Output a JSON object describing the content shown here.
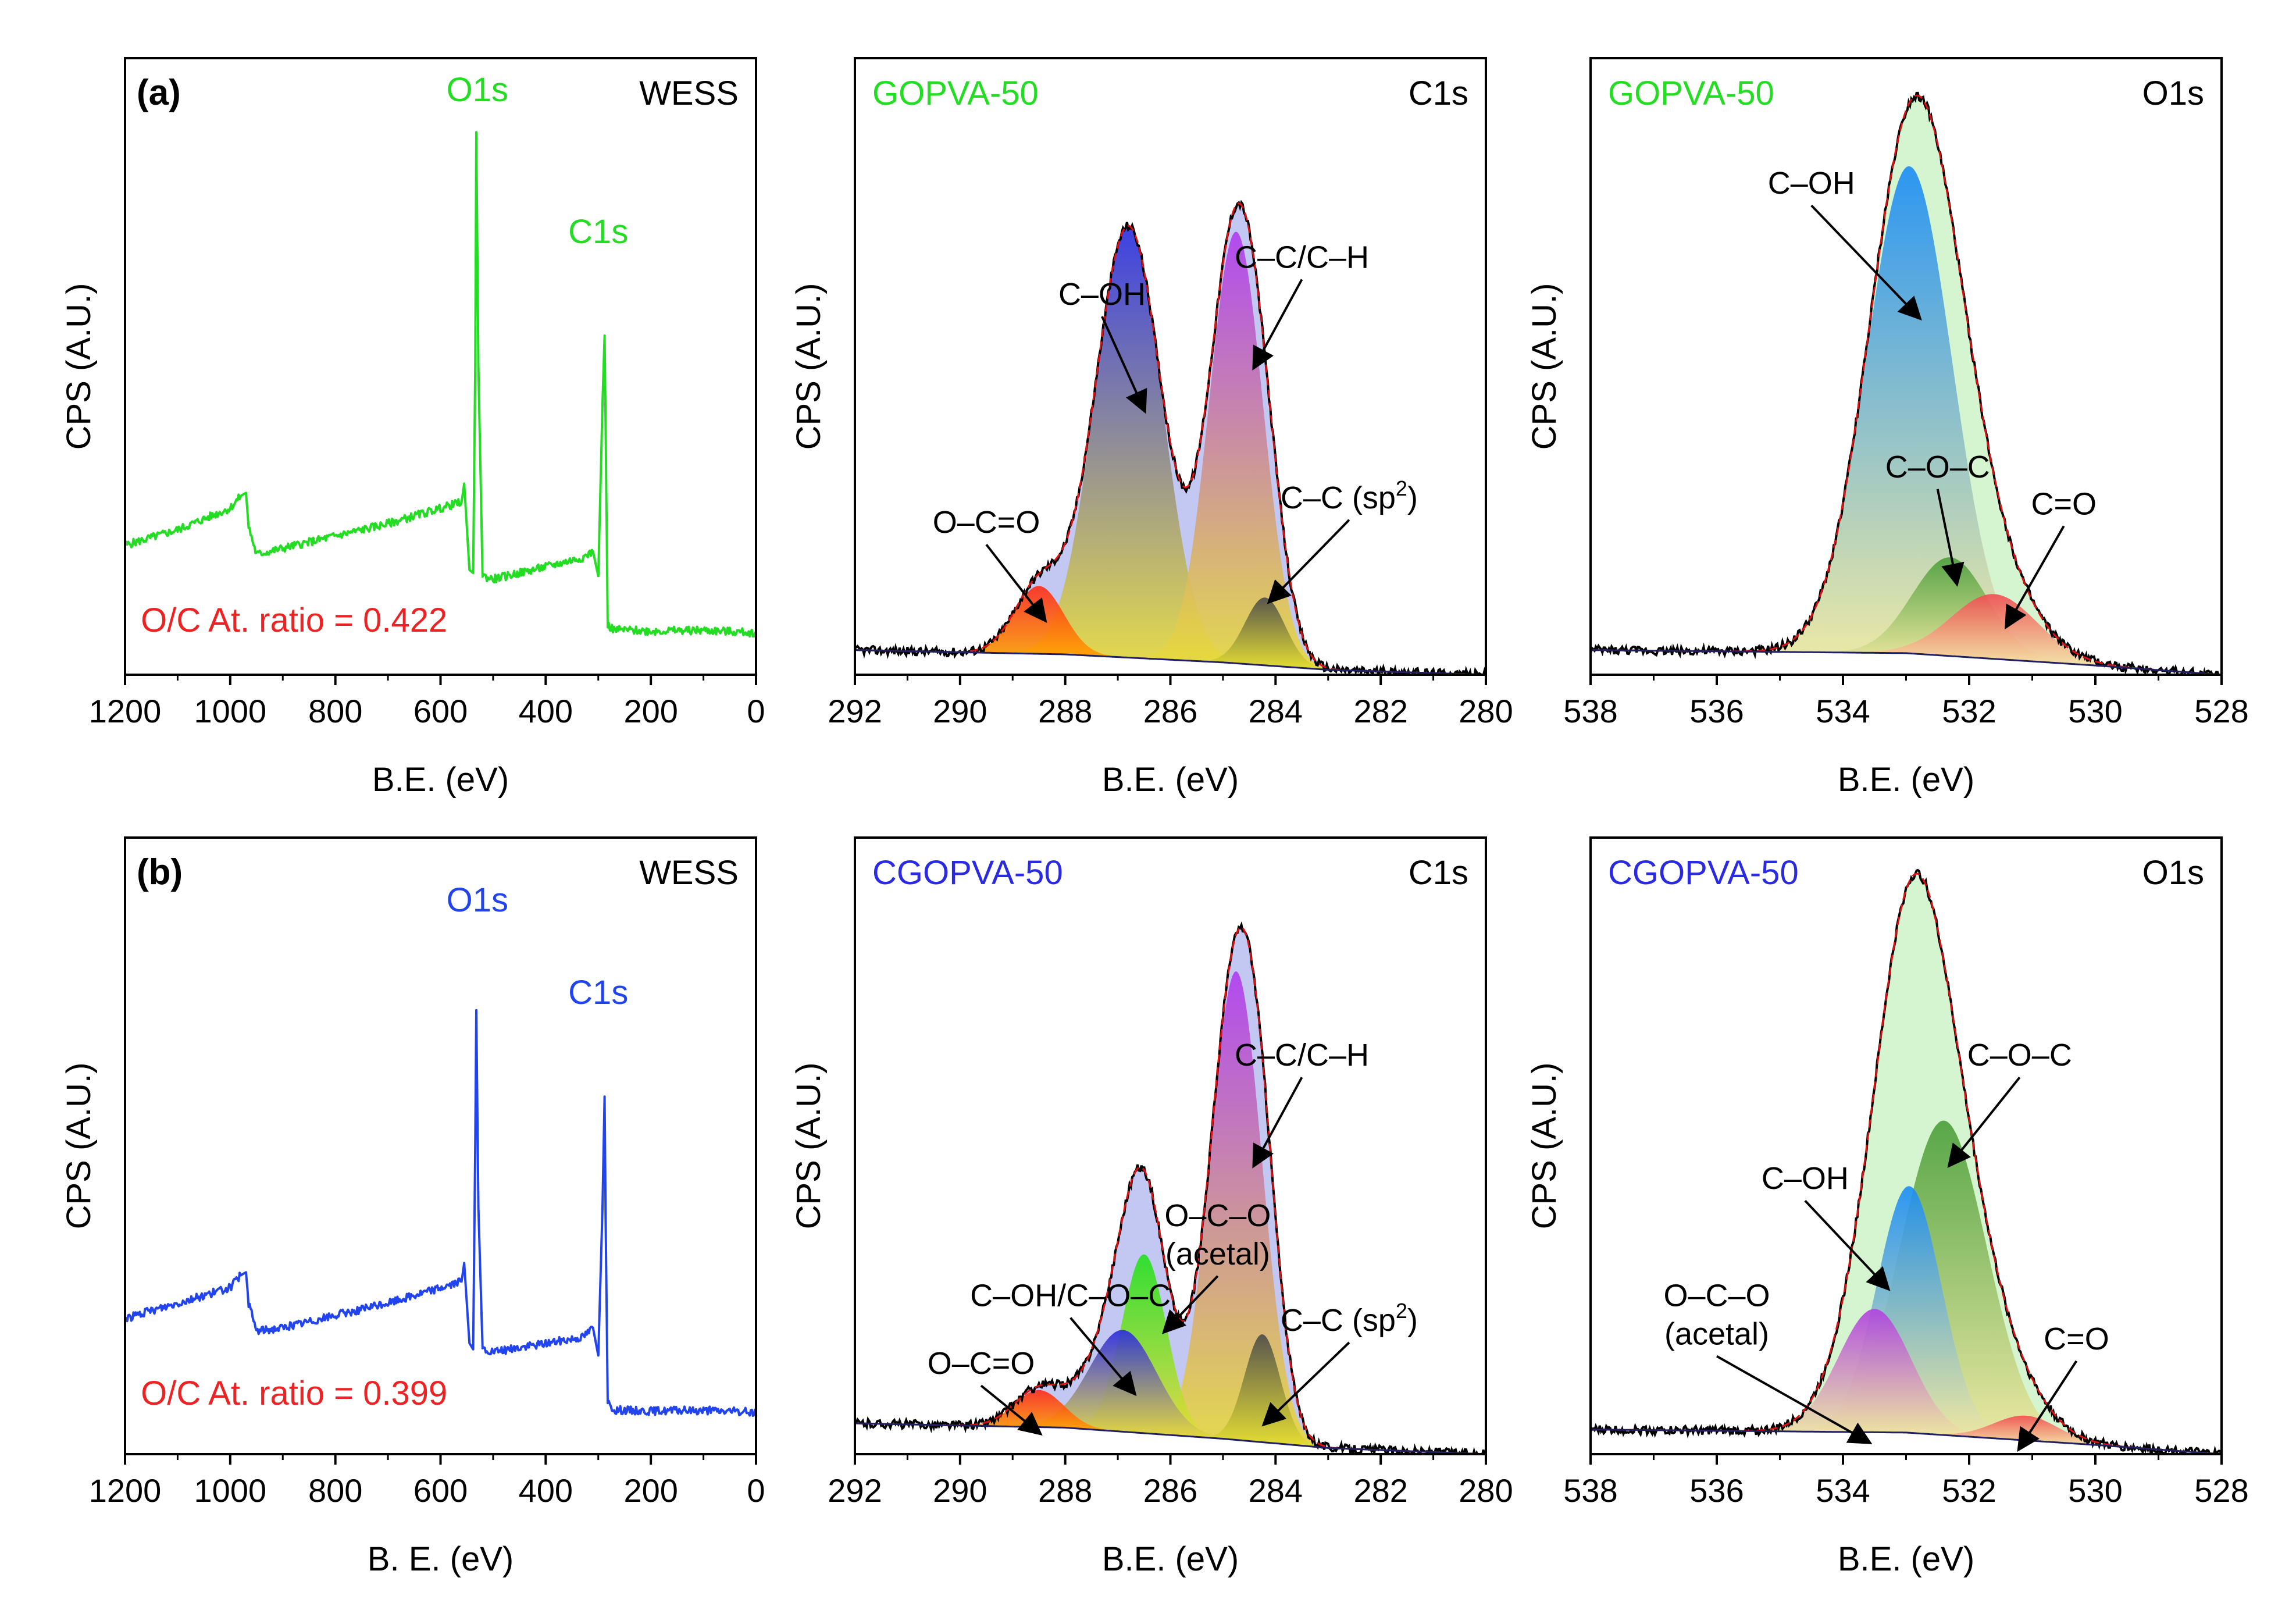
{
  "figure": {
    "row_labels": [
      "(a)",
      "(b)"
    ]
  },
  "chart_data": [
    {
      "id": "a-survey",
      "type": "line",
      "title": "WESS",
      "xlabel": "B.E. (eV)",
      "ylabel": "CPS (A.U.)",
      "xlim": [
        1200,
        0
      ],
      "xticks": [
        1200,
        1000,
        800,
        600,
        400,
        200,
        0
      ],
      "ylim": [
        0,
        100
      ],
      "color": "#22dd22",
      "annotations": [
        {
          "text": "O1s",
          "x": 530,
          "y": 93,
          "color": "#22dd22"
        },
        {
          "text": "C1s",
          "x": 300,
          "y": 70,
          "color": "#22dd22"
        },
        {
          "text": "O/C At. ratio = 0.422",
          "x": 1170,
          "y": 7,
          "color": "#ee2222",
          "anchor": "start"
        }
      ],
      "series": [
        {
          "name": "WESS survey",
          "x": [
            1200,
            1100,
            1000,
            980,
            970,
            965,
            950,
            900,
            800,
            700,
            600,
            560,
            555,
            545,
            538,
            534,
            532,
            528,
            520,
            500,
            400,
            330,
            310,
            300,
            292,
            288,
            286,
            282,
            270,
            200,
            100,
            0
          ],
          "y": [
            21,
            23.5,
            27,
            29,
            29.5,
            24,
            19.5,
            20.5,
            22.5,
            24.5,
            27,
            28,
            31,
            17,
            16.5,
            50,
            88,
            50,
            16,
            15.5,
            17.5,
            19,
            20,
            16,
            44,
            55,
            40,
            8,
            7.3,
            7.1,
            7.2,
            6.8
          ]
        }
      ]
    },
    {
      "id": "a-c1s",
      "type": "area",
      "title": "C1s",
      "sample": "GOPVA-50",
      "sample_color": "#22dd22",
      "xlabel": "B.E. (eV)",
      "ylabel": "CPS (A.U.)",
      "xlim": [
        292,
        280
      ],
      "xticks": [
        292,
        290,
        288,
        286,
        284,
        282,
        280
      ],
      "ylim": [
        0,
        100
      ],
      "baseline": [
        [
          292,
          4
        ],
        [
          288,
          3.3
        ],
        [
          285,
          2
        ],
        [
          283,
          0.8
        ],
        [
          280,
          0
        ]
      ],
      "envelope_color": "#c3c8f2",
      "components": [
        {
          "name": "O–C=O",
          "center": 288.5,
          "height": 11,
          "fwhm": 1.1,
          "colors": [
            "#ff2a1a",
            "#ffa000"
          ]
        },
        {
          "name": "C–OH",
          "center": 286.8,
          "height": 70,
          "fwhm": 1.5,
          "colors": [
            "#2e32e0",
            "#e8dc3a"
          ]
        },
        {
          "name": "C–C/C–H",
          "center": 284.75,
          "height": 70,
          "fwhm": 1.2,
          "colors": [
            "#b03cf0",
            "#e8dc3a"
          ]
        },
        {
          "name": "C–C (sp2)",
          "center": 284.2,
          "height": 11,
          "fwhm": 0.9,
          "colors": [
            "#4a4a4a",
            "#e6e030"
          ]
        }
      ],
      "labels": [
        {
          "text": "C–OH",
          "x": 287.3,
          "y": 60,
          "arrow_to": [
            286.5,
            43
          ]
        },
        {
          "text": "C–C/C–H",
          "x": 283.5,
          "y": 66,
          "arrow_to": [
            284.4,
            50
          ]
        },
        {
          "text": "O–C=O",
          "x": 289.5,
          "y": 23,
          "arrow_to": [
            288.4,
            9
          ]
        },
        {
          "text": "C–C (sp",
          "sup": "2",
          "suffix": ")",
          "x": 282.6,
          "y": 27,
          "arrow_to": [
            284.1,
            12
          ]
        }
      ]
    },
    {
      "id": "a-o1s",
      "type": "area",
      "title": "O1s",
      "sample": "GOPVA-50",
      "sample_color": "#22dd22",
      "xlabel": "B.E. (eV)",
      "ylabel": "CPS (A.U.)",
      "xlim": [
        538,
        528
      ],
      "xticks": [
        538,
        536,
        534,
        532,
        530,
        528
      ],
      "ylim": [
        0,
        100
      ],
      "baseline": [
        [
          538,
          4
        ],
        [
          533,
          3.5
        ],
        [
          530,
          1.5
        ],
        [
          528,
          0
        ]
      ],
      "envelope_color": "#d5f5d0",
      "components": [
        {
          "name": "C–OH",
          "center": 532.95,
          "height": 79,
          "fwhm": 1.6,
          "colors": [
            "#1a8cf5",
            "#f0e8a0"
          ]
        },
        {
          "name": "C–O–C",
          "center": 532.3,
          "height": 16,
          "fwhm": 1.4,
          "colors": [
            "#4a9e3a",
            "#f0e8a0"
          ]
        },
        {
          "name": "C=O",
          "center": 531.6,
          "height": 10.5,
          "fwhm": 1.6,
          "colors": [
            "#f04c50",
            "#f6e6a8"
          ]
        }
      ],
      "labels": [
        {
          "text": "C–OH",
          "x": 534.5,
          "y": 78,
          "arrow_to": [
            532.8,
            58
          ]
        },
        {
          "text": "C–O–C",
          "x": 532.5,
          "y": 32,
          "arrow_to": [
            532.2,
            15
          ]
        },
        {
          "text": "C=O",
          "x": 530.5,
          "y": 26,
          "arrow_to": [
            531.4,
            8
          ]
        }
      ]
    },
    {
      "id": "b-survey",
      "type": "line",
      "title": "WESS",
      "xlabel": "B. E. (eV)",
      "ylabel": "CPS (A.U.)",
      "xlim": [
        1200,
        0
      ],
      "xticks": [
        1200,
        1000,
        800,
        600,
        400,
        200,
        0
      ],
      "ylim": [
        0,
        100
      ],
      "color": "#2244ee",
      "annotations": [
        {
          "text": "O1s",
          "x": 530,
          "y": 88,
          "color": "#2244ee"
        },
        {
          "text": "C1s",
          "x": 300,
          "y": 73,
          "color": "#2244ee"
        },
        {
          "text": "O/C At. ratio = 0.399",
          "x": 1170,
          "y": 8,
          "color": "#ee2222",
          "anchor": "start"
        }
      ],
      "series": [
        {
          "name": "WESS survey",
          "x": [
            1200,
            1100,
            1000,
            980,
            970,
            965,
            950,
            900,
            800,
            700,
            600,
            560,
            555,
            545,
            538,
            534,
            532,
            528,
            520,
            500,
            400,
            330,
            310,
            300,
            292,
            288,
            286,
            282,
            270,
            200,
            100,
            0
          ],
          "y": [
            22,
            24.5,
            27,
            29,
            29.5,
            24.5,
            20,
            20.5,
            22.5,
            24.5,
            27,
            28,
            31,
            18,
            17,
            50,
            72,
            40,
            17,
            16.5,
            18,
            19,
            20.5,
            16,
            40,
            58,
            38,
            8.5,
            7.2,
            7,
            7.1,
            6.8
          ]
        }
      ]
    },
    {
      "id": "b-c1s",
      "type": "area",
      "title": "C1s",
      "sample": "CGOPVA-50",
      "sample_color": "#2a2ae0",
      "xlabel": "B.E. (eV)",
      "ylabel": "CPS (A.U.)",
      "xlim": [
        292,
        280
      ],
      "xticks": [
        292,
        290,
        288,
        286,
        284,
        282,
        280
      ],
      "ylim": [
        0,
        100
      ],
      "baseline": [
        [
          292,
          5
        ],
        [
          288,
          4.3
        ],
        [
          285,
          2.5
        ],
        [
          283,
          1
        ],
        [
          280,
          0
        ]
      ],
      "envelope_color": "#c3c8f2",
      "components": [
        {
          "name": "O–C=O",
          "center": 288.5,
          "height": 6,
          "fwhm": 1.1,
          "colors": [
            "#ff2a1a",
            "#ffa000"
          ]
        },
        {
          "name": "C–OH/C–O–C",
          "center": 286.9,
          "height": 16.5,
          "fwhm": 1.5,
          "colors": [
            "#2a2ae0",
            "#e8dc3a"
          ]
        },
        {
          "name": "O–C–O (acetal)",
          "center": 286.5,
          "height": 29,
          "fwhm": 1.0,
          "colors": [
            "#22e01e",
            "#e8dc3a"
          ]
        },
        {
          "name": "C–C/C–H",
          "center": 284.75,
          "height": 76,
          "fwhm": 1.15,
          "colors": [
            "#b03cf0",
            "#e8dc3a"
          ]
        },
        {
          "name": "C–C (sp2)",
          "center": 284.25,
          "height": 17.5,
          "fwhm": 0.8,
          "colors": [
            "#4a4a4a",
            "#e6e030"
          ]
        }
      ],
      "labels": [
        {
          "text": "C–C/C–H",
          "x": 283.5,
          "y": 63,
          "arrow_to": [
            284.4,
            47
          ]
        },
        {
          "text": "O–C–O",
          "line2": "(acetal)",
          "x": 285.1,
          "y": 37,
          "arrow_to": [
            286.1,
            20
          ]
        },
        {
          "text": "C–OH/C–O–C",
          "x": 287.9,
          "y": 24,
          "arrow_to": [
            286.7,
            10
          ]
        },
        {
          "text": "O–C=O",
          "x": 289.6,
          "y": 13,
          "arrow_to": [
            288.5,
            3.5
          ]
        },
        {
          "text": "C–C (sp",
          "sup": "2",
          "suffix": ")",
          "x": 282.6,
          "y": 20,
          "arrow_to": [
            284.2,
            5
          ]
        }
      ]
    },
    {
      "id": "b-o1s",
      "type": "area",
      "title": "O1s",
      "sample": "CGOPVA-50",
      "sample_color": "#2a2ae0",
      "xlabel": "B.E. (eV)",
      "ylabel": "CPS (A.U.)",
      "xlim": [
        538,
        528
      ],
      "xticks": [
        538,
        536,
        534,
        532,
        530,
        528
      ],
      "ylim": [
        0,
        100
      ],
      "baseline": [
        [
          538,
          4
        ],
        [
          533,
          3.5
        ],
        [
          530,
          1.5
        ],
        [
          528,
          0
        ]
      ],
      "envelope_color": "#d5f5d0",
      "components": [
        {
          "name": "O–C–O (acetal)",
          "center": 533.5,
          "height": 20,
          "fwhm": 1.35,
          "colors": [
            "#b040e0",
            "#f0e8a0"
          ]
        },
        {
          "name": "C–OH",
          "center": 532.95,
          "height": 40,
          "fwhm": 1.2,
          "colors": [
            "#1a8cf5",
            "#f0e8a0"
          ]
        },
        {
          "name": "C–O–C",
          "center": 532.4,
          "height": 51,
          "fwhm": 1.6,
          "colors": [
            "#4a9e3a",
            "#f0e8a0"
          ]
        },
        {
          "name": "C=O",
          "center": 531.1,
          "height": 4,
          "fwhm": 1.2,
          "colors": [
            "#f04c50",
            "#f6e6a8"
          ]
        }
      ],
      "labels": [
        {
          "text": "C–O–C",
          "x": 531.2,
          "y": 63,
          "arrow_to": [
            532.3,
            47
          ]
        },
        {
          "text": "C–OH",
          "x": 534.6,
          "y": 43,
          "arrow_to": [
            533.3,
            27
          ]
        },
        {
          "text": "O–C–O",
          "line2": "(acetal)",
          "x": 536,
          "y": 24,
          "arrow_to": [
            533.6,
            2
          ]
        },
        {
          "text": "C=O",
          "x": 530.3,
          "y": 17,
          "arrow_to": [
            531.2,
            1
          ]
        }
      ]
    }
  ]
}
